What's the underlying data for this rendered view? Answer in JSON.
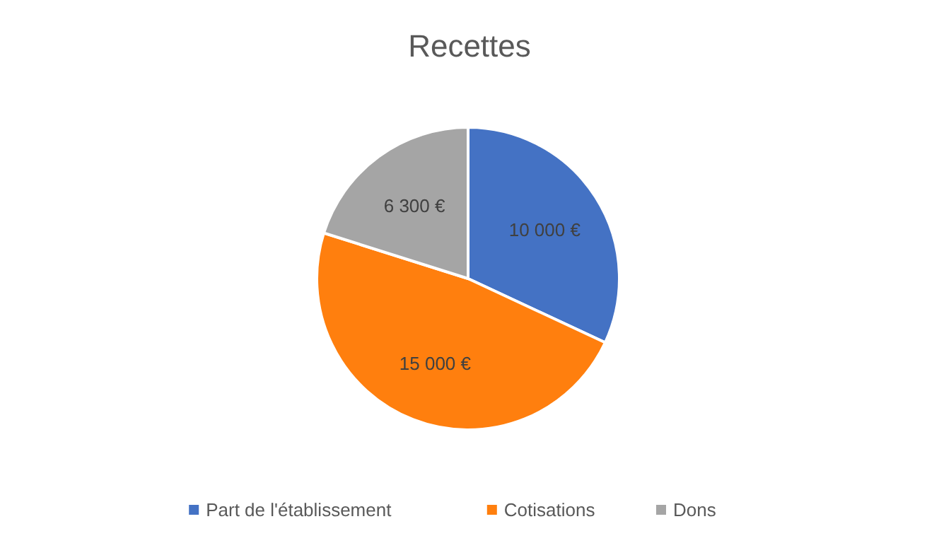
{
  "chart_data": {
    "type": "pie",
    "title": "Recettes",
    "categories": [
      "Part de l'établissement",
      "Cotisations",
      "Dons"
    ],
    "values": [
      10000,
      15000,
      6300
    ],
    "colors": [
      "#4472c4",
      "#ff7f0e",
      "#a5a5a5"
    ],
    "value_labels": [
      "10 000 €",
      "15 000 €",
      "6 300 €"
    ],
    "legend": "bottom"
  }
}
